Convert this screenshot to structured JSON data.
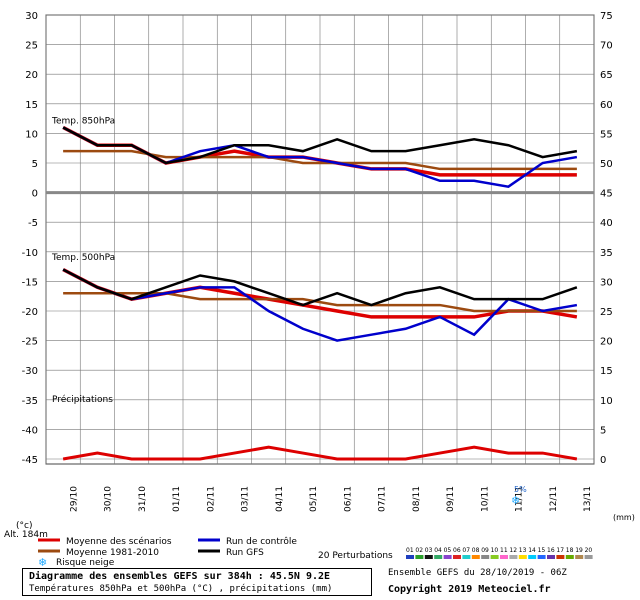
{
  "chart_data": {
    "type": "line",
    "left_axis_ticks": [
      30,
      25,
      20,
      15,
      10,
      5,
      0,
      -5,
      -10,
      -15,
      -20,
      -25,
      -30,
      -35,
      -40,
      -45
    ],
    "right_axis_ticks": [
      75,
      70,
      65,
      60,
      55,
      50,
      45,
      40,
      35,
      30,
      25,
      20,
      15,
      10,
      5,
      0
    ],
    "left_unit": "(°c)",
    "right_unit": "(mm)",
    "altitude_label": "Alt. 184m",
    "date_labels": [
      "29/10",
      "30/10",
      "31/10",
      "01/11",
      "02/11",
      "03/11",
      "04/11",
      "05/11",
      "06/11",
      "07/11",
      "08/11",
      "09/11",
      "10/11",
      "11/11",
      "12/11",
      "13/11"
    ],
    "panels": [
      {
        "label": "Temp. 850hPa"
      },
      {
        "label": "Temp. 500hPa"
      },
      {
        "label": "Précipitations"
      }
    ],
    "series": [
      {
        "name": "Moyenne des scénarios",
        "color": "#dd0000",
        "t850": [
          11,
          8,
          8,
          5,
          6,
          7,
          6,
          6,
          5,
          4,
          4,
          3,
          3,
          3,
          3,
          3
        ],
        "t500": [
          -13,
          -16,
          -18,
          -17,
          -16,
          -17,
          -18,
          -19,
          -20,
          -21,
          -21,
          -21,
          -21,
          -20,
          -20,
          -21
        ]
      },
      {
        "name": "Moyenne 1981-2010",
        "color": "#9c4a10",
        "t850": [
          7,
          7,
          7,
          6,
          6,
          6,
          6,
          5,
          5,
          5,
          5,
          4,
          4,
          4,
          4,
          4
        ],
        "t500": [
          -17,
          -17,
          -17,
          -17,
          -18,
          -18,
          -18,
          -18,
          -19,
          -19,
          -19,
          -19,
          -20,
          -20,
          -20,
          -20
        ]
      },
      {
        "name": "Run de contrôle",
        "color": "#0000cc",
        "t850": [
          11,
          8,
          8,
          5,
          7,
          8,
          6,
          6,
          5,
          4,
          4,
          2,
          2,
          1,
          5,
          6
        ],
        "t500": [
          -13,
          -16,
          -18,
          -17,
          -16,
          -16,
          -20,
          -23,
          -25,
          -24,
          -23,
          -21,
          -24,
          -18,
          -20,
          -19
        ]
      },
      {
        "name": "Run GFS",
        "color": "#000000",
        "t850": [
          11,
          8,
          8,
          5,
          6,
          8,
          8,
          7,
          9,
          7,
          7,
          8,
          9,
          8,
          6,
          7
        ],
        "t500": [
          -13,
          -16,
          -18,
          -16,
          -14,
          -15,
          -17,
          -19,
          -17,
          -19,
          -17,
          -16,
          -18,
          -18,
          -18,
          -16
        ]
      }
    ],
    "precip_mean_mm": [
      0,
      1,
      0,
      0,
      0,
      1,
      2,
      1,
      0,
      0,
      0,
      1,
      2,
      1,
      1,
      0
    ],
    "snow_label": "Risque neige",
    "snow_pct_label": "5%",
    "perturbations_label": "20 Perturbations",
    "perturbation_ids": [
      "01",
      "02",
      "03",
      "04",
      "05",
      "06",
      "07",
      "08",
      "09",
      "10",
      "11",
      "12",
      "13",
      "14",
      "15",
      "16",
      "17",
      "18",
      "19",
      "20"
    ],
    "perturbation_colors": [
      "#1f3fbf",
      "#2aa02a",
      "#111111",
      "#33aa66",
      "#8844cc",
      "#dd2222",
      "#22cccc",
      "#ff8800",
      "#888888",
      "#88cc22",
      "#ff66cc",
      "#aaaaaa",
      "#ffdd00",
      "#00ccff",
      "#2266ff",
      "#6633aa",
      "#cc3300",
      "#66aa00",
      "#b08850",
      "#999999"
    ]
  },
  "footer": {
    "title": "Diagramme des ensembles GEFS sur 384h : 45.5N 9.2E",
    "subtitle": "Températures 850hPa et 500hPa (°C) , précipitations (mm)",
    "run": "Ensemble GEFS du 28/10/2019 - 06Z",
    "copyright": "Copyright 2019 Meteociel.fr"
  }
}
